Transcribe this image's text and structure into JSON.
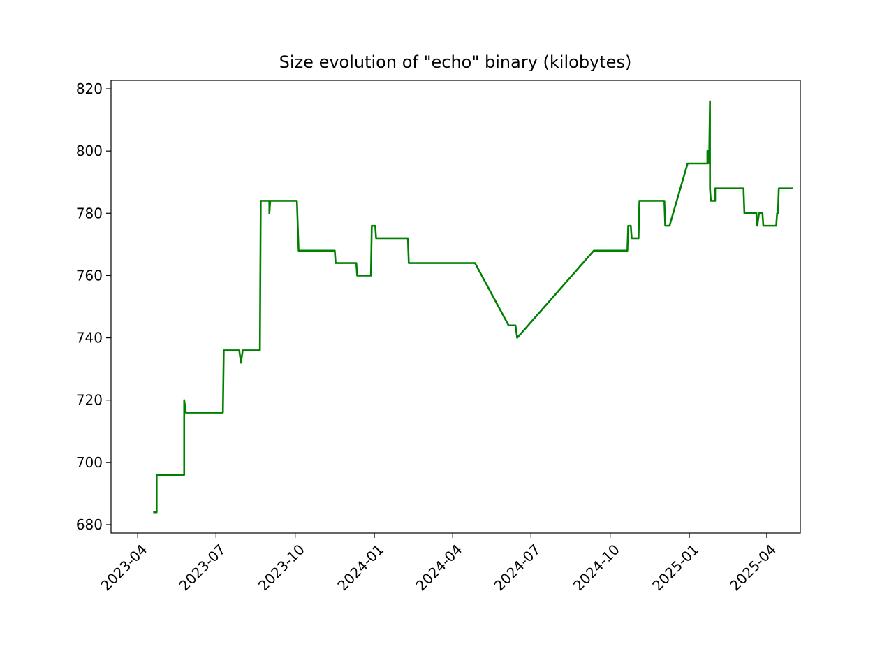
{
  "chart_data": {
    "type": "line",
    "title": "Size evolution of \"echo\" binary (kilobytes)",
    "xlabel": "",
    "ylabel": "",
    "grid": false,
    "legend": "none",
    "x_axis": {
      "type": "date",
      "range": [
        "2023-03-01",
        "2025-05-10"
      ],
      "ticks": [
        "2023-04",
        "2023-07",
        "2023-10",
        "2024-01",
        "2024-04",
        "2024-07",
        "2024-10",
        "2025-01",
        "2025-04"
      ],
      "tick_dates": [
        "2023-04-01",
        "2023-07-01",
        "2023-10-01",
        "2024-01-01",
        "2024-04-01",
        "2024-07-01",
        "2024-10-01",
        "2025-01-01",
        "2025-04-01"
      ]
    },
    "y_axis": {
      "range": [
        677.3,
        822.7
      ],
      "ticks": [
        680,
        700,
        720,
        740,
        760,
        780,
        800,
        820
      ]
    },
    "series": [
      {
        "name": "echo",
        "color": "#008000",
        "points": [
          [
            "2023-04-20",
            684
          ],
          [
            "2023-04-23",
            684
          ],
          [
            "2023-04-23",
            696
          ],
          [
            "2023-05-25",
            696
          ],
          [
            "2023-05-25",
            720
          ],
          [
            "2023-05-27",
            716
          ],
          [
            "2023-07-09",
            716
          ],
          [
            "2023-07-10",
            736
          ],
          [
            "2023-07-28",
            736
          ],
          [
            "2023-07-30",
            732
          ],
          [
            "2023-08-01",
            736
          ],
          [
            "2023-08-21",
            736
          ],
          [
            "2023-08-22",
            784
          ],
          [
            "2023-09-01",
            784
          ],
          [
            "2023-09-01",
            780
          ],
          [
            "2023-09-02",
            784
          ],
          [
            "2023-10-03",
            784
          ],
          [
            "2023-10-05",
            768
          ],
          [
            "2023-11-16",
            768
          ],
          [
            "2023-11-17",
            764
          ],
          [
            "2023-12-11",
            764
          ],
          [
            "2023-12-12",
            760
          ],
          [
            "2023-12-28",
            760
          ],
          [
            "2023-12-29",
            776
          ],
          [
            "2024-01-02",
            776
          ],
          [
            "2024-01-03",
            772
          ],
          [
            "2024-02-09",
            772
          ],
          [
            "2024-02-10",
            764
          ],
          [
            "2024-04-27",
            764
          ],
          [
            "2024-06-05",
            744
          ],
          [
            "2024-06-13",
            744
          ],
          [
            "2024-06-15",
            740
          ],
          [
            "2024-09-12",
            768
          ],
          [
            "2024-10-21",
            768
          ],
          [
            "2024-10-22",
            776
          ],
          [
            "2024-10-25",
            776
          ],
          [
            "2024-10-26",
            772
          ],
          [
            "2024-11-03",
            772
          ],
          [
            "2024-11-04",
            784
          ],
          [
            "2024-12-03",
            784
          ],
          [
            "2024-12-04",
            776
          ],
          [
            "2024-12-09",
            776
          ],
          [
            "2024-12-30",
            796
          ],
          [
            "2025-01-22",
            796
          ],
          [
            "2025-01-22",
            800
          ],
          [
            "2025-01-23",
            800
          ],
          [
            "2025-01-24",
            796
          ],
          [
            "2025-01-25",
            816
          ],
          [
            "2025-01-25",
            788
          ],
          [
            "2025-01-26",
            784
          ],
          [
            "2025-01-31",
            784
          ],
          [
            "2025-01-31",
            788
          ],
          [
            "2025-03-05",
            788
          ],
          [
            "2025-03-06",
            780
          ],
          [
            "2025-03-20",
            780
          ],
          [
            "2025-03-21",
            776
          ],
          [
            "2025-03-23",
            780
          ],
          [
            "2025-03-27",
            780
          ],
          [
            "2025-03-28",
            776
          ],
          [
            "2025-04-12",
            776
          ],
          [
            "2025-04-13",
            780
          ],
          [
            "2025-04-14",
            780
          ],
          [
            "2025-04-15",
            788
          ],
          [
            "2025-04-30",
            788
          ]
        ]
      }
    ]
  }
}
